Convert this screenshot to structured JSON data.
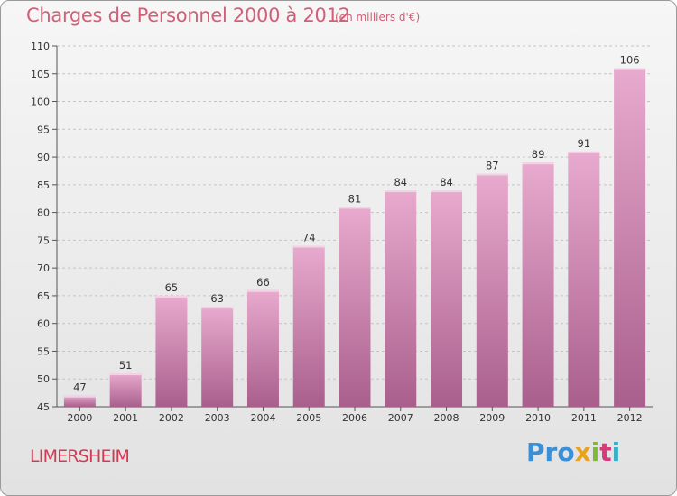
{
  "header": {
    "title": "Charges de Personnel 2000 à 2012",
    "subtitle": "(en milliers d'€)"
  },
  "footer": {
    "place": "LIMERSHEIM",
    "logo_text": "Proxiti",
    "logo_letters": [
      "Pro",
      "x",
      "i",
      "t",
      "i"
    ]
  },
  "colors": {
    "bar_light": "#e8aace",
    "bar_dark": "#a95f8c",
    "title": "#d06078",
    "place": "#d03a52"
  },
  "chart_data": {
    "type": "bar",
    "title": "Charges de Personnel 2000 à 2012",
    "subtitle": "(en milliers d'€)",
    "xlabel": "",
    "ylabel": "",
    "categories": [
      "2000",
      "2001",
      "2002",
      "2003",
      "2004",
      "2005",
      "2006",
      "2007",
      "2008",
      "2009",
      "2010",
      "2011",
      "2012"
    ],
    "values": [
      47,
      51,
      65,
      63,
      66,
      74,
      81,
      84,
      84,
      87,
      89,
      91,
      106
    ],
    "ylim": [
      45,
      110
    ],
    "yticks": [
      45,
      50,
      55,
      60,
      65,
      70,
      75,
      80,
      85,
      90,
      95,
      100,
      105,
      110
    ],
    "grid": true,
    "legend": "none"
  }
}
